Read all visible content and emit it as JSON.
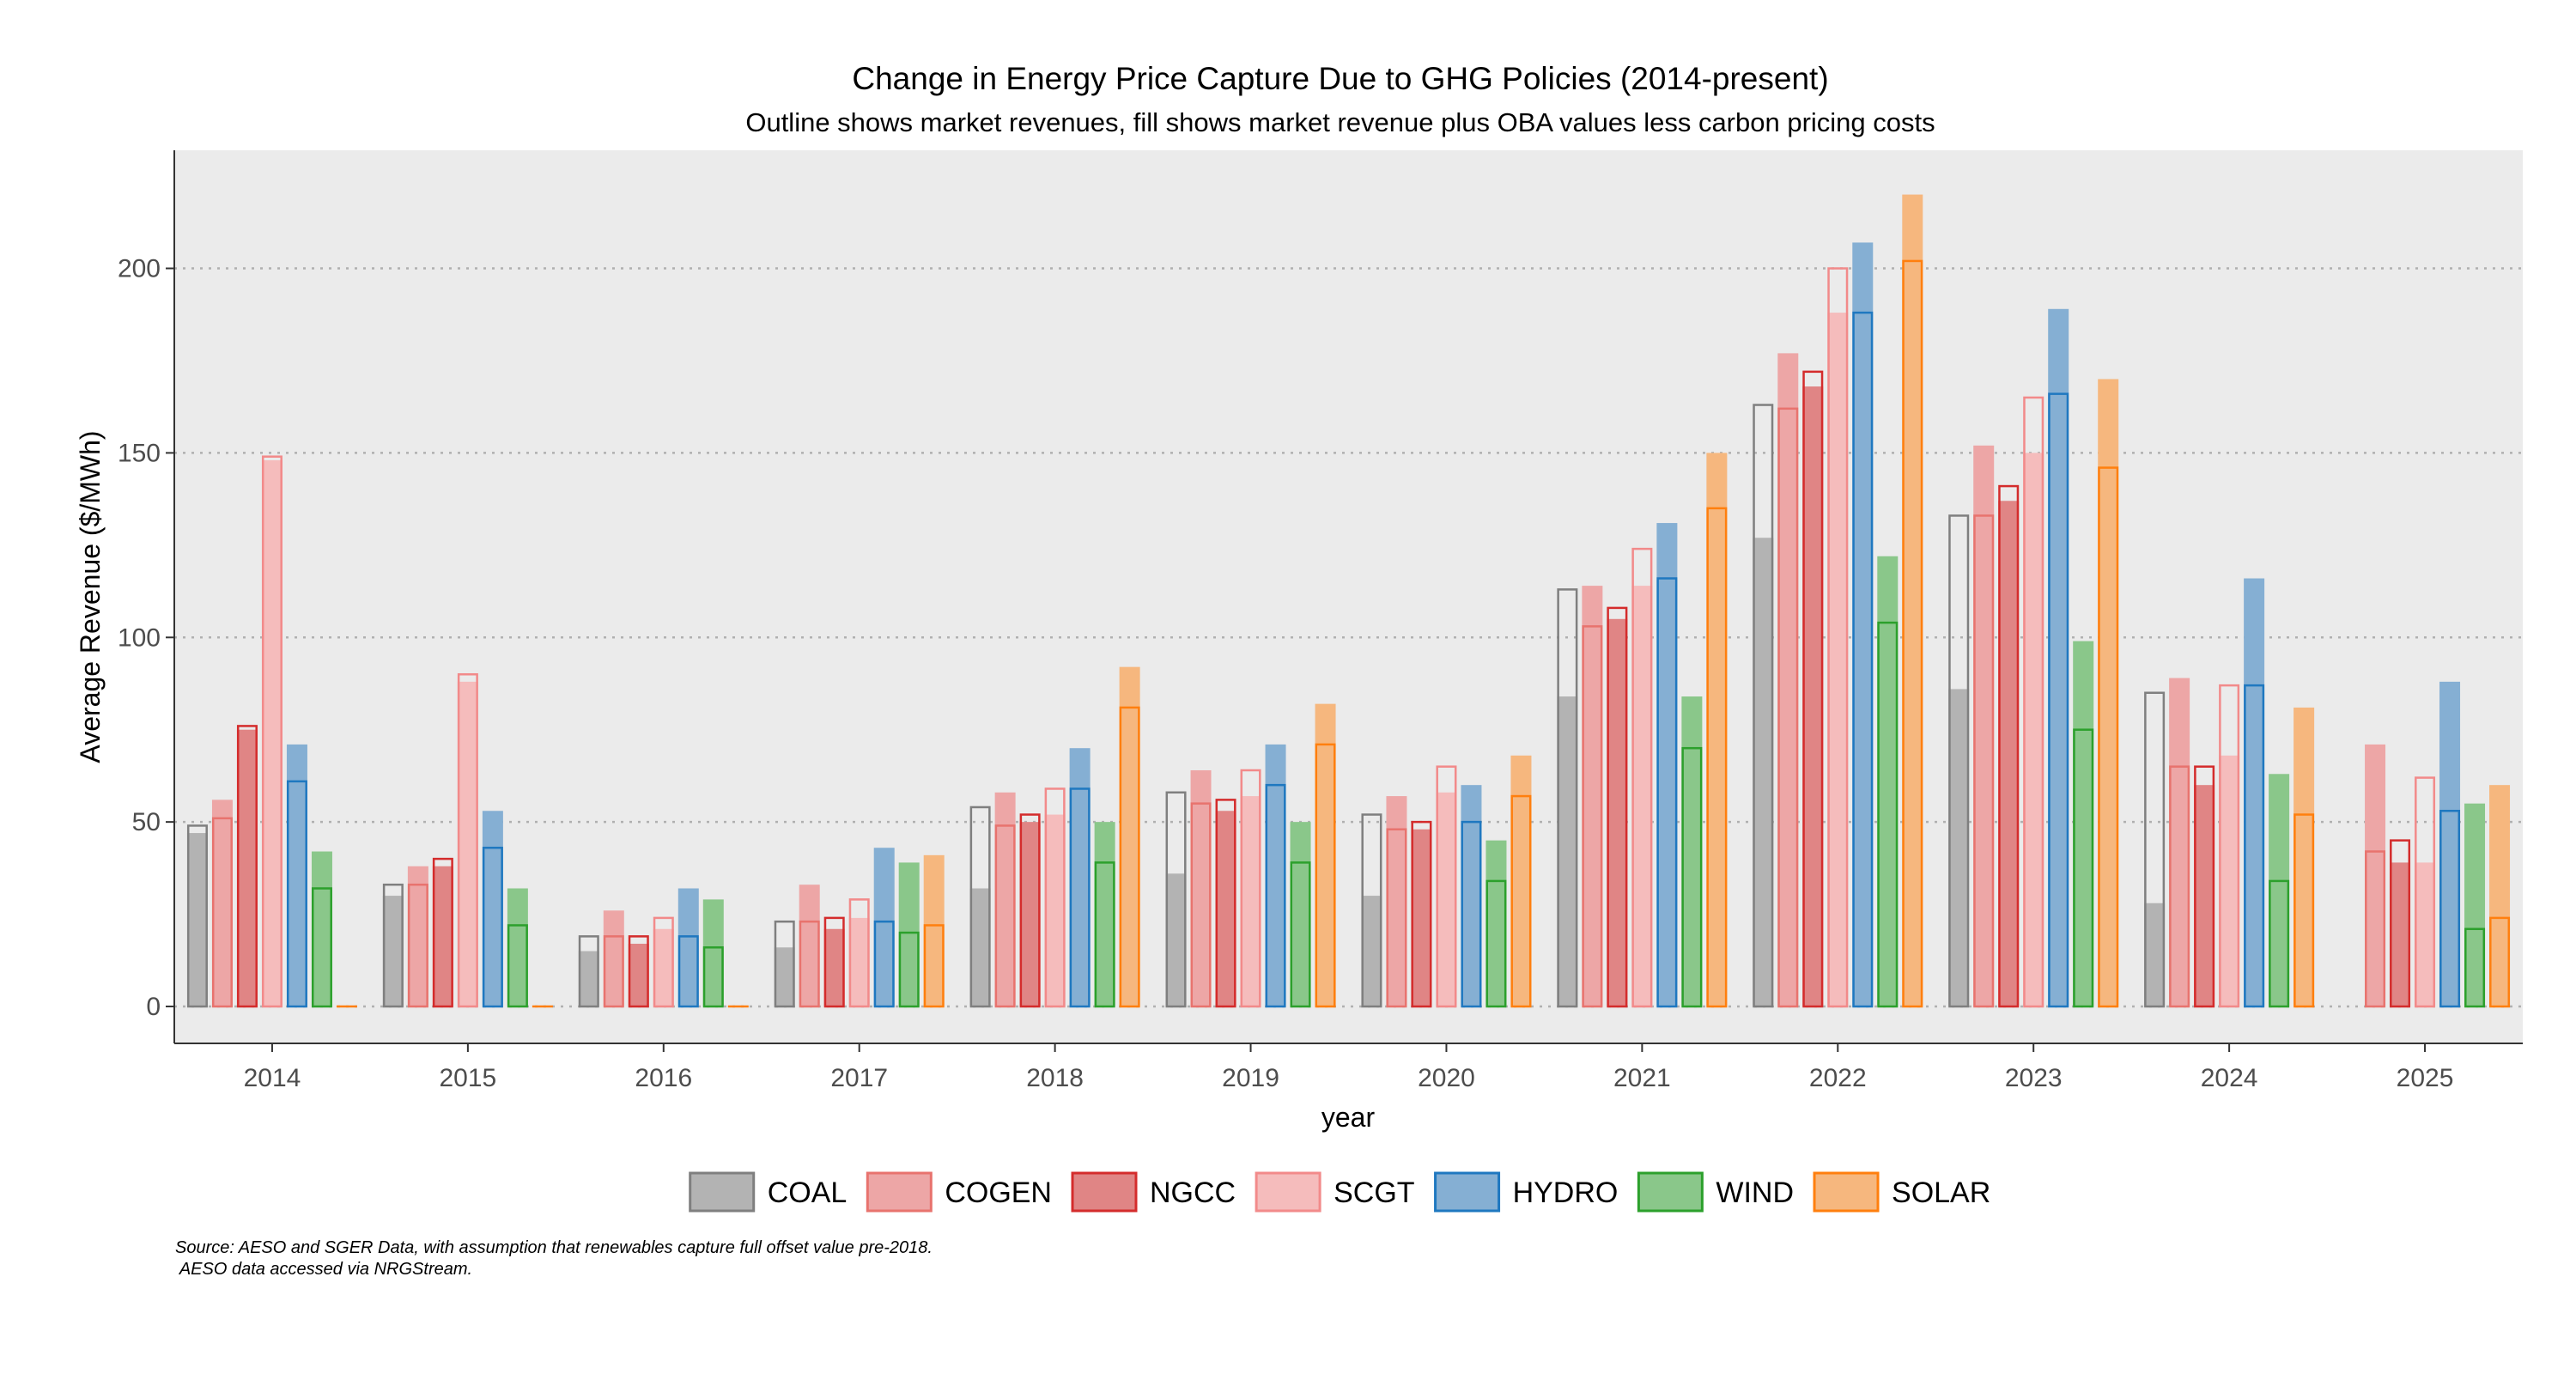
{
  "chart_data": {
    "type": "bar",
    "title": "Change in Energy Price Capture Due to GHG Policies (2014-present)",
    "subtitle": "Outline shows market revenues, fill shows market revenue plus OBA values less carbon pricing costs",
    "xlabel": "year",
    "ylabel": "Average Revenue ($/MWh)",
    "ylim": [
      -10,
      232
    ],
    "yticks": [
      0,
      50,
      100,
      150,
      200
    ],
    "grid": true,
    "legend_position": "bottom",
    "categories": [
      "2014",
      "2015",
      "2016",
      "2017",
      "2018",
      "2019",
      "2020",
      "2021",
      "2022",
      "2023",
      "2024",
      "2025"
    ],
    "series": [
      {
        "name": "COAL",
        "fill_color": "#b3b3b3",
        "outline_color": "#7f7f7f",
        "fill_values": [
          47,
          30,
          15,
          16,
          32,
          36,
          30,
          84,
          127,
          86,
          28,
          null
        ],
        "outline_values": [
          49,
          33,
          19,
          23,
          54,
          58,
          52,
          113,
          163,
          133,
          85,
          null
        ]
      },
      {
        "name": "COGEN",
        "fill_color": "#eda6a6",
        "outline_color": "#e8736e",
        "fill_values": [
          56,
          38,
          26,
          33,
          58,
          64,
          57,
          114,
          177,
          152,
          89,
          71
        ],
        "outline_values": [
          51,
          33,
          19,
          23,
          49,
          55,
          48,
          103,
          162,
          133,
          65,
          42
        ]
      },
      {
        "name": "NGCC",
        "fill_color": "#e08585",
        "outline_color": "#d42c2c",
        "fill_values": [
          75,
          38,
          17,
          21,
          50,
          53,
          48,
          105,
          168,
          137,
          60,
          39
        ],
        "outline_values": [
          76,
          40,
          19,
          24,
          52,
          56,
          50,
          108,
          172,
          141,
          65,
          45
        ]
      },
      {
        "name": "SCGT",
        "fill_color": "#f5bcbc",
        "outline_color": "#f28a8a",
        "fill_values": [
          148,
          88,
          21,
          24,
          52,
          57,
          58,
          114,
          188,
          150,
          68,
          39
        ],
        "outline_values": [
          149,
          90,
          24,
          29,
          59,
          64,
          65,
          124,
          200,
          165,
          87,
          62
        ]
      },
      {
        "name": "HYDRO",
        "fill_color": "#85afd3",
        "outline_color": "#1f78c0",
        "fill_values": [
          71,
          53,
          32,
          43,
          70,
          71,
          60,
          131,
          207,
          189,
          116,
          88
        ],
        "outline_values": [
          61,
          43,
          19,
          23,
          59,
          60,
          50,
          116,
          188,
          166,
          87,
          53
        ]
      },
      {
        "name": "WIND",
        "fill_color": "#8ac78a",
        "outline_color": "#2ca02c",
        "fill_values": [
          42,
          32,
          29,
          39,
          50,
          50,
          45,
          84,
          122,
          99,
          63,
          55
        ],
        "outline_values": [
          32,
          22,
          16,
          20,
          39,
          39,
          34,
          70,
          104,
          75,
          34,
          21
        ]
      },
      {
        "name": "SOLAR",
        "fill_color": "#f6b77e",
        "outline_color": "#ff7f0e",
        "fill_values": [
          0,
          0,
          0,
          41,
          92,
          82,
          68,
          150,
          220,
          170,
          81,
          60
        ],
        "outline_values": [
          0,
          0,
          0,
          22,
          81,
          71,
          57,
          135,
          202,
          146,
          52,
          24
        ]
      }
    ]
  },
  "caption_lines": [
    "Source: AESO and SGER Data, with assumption that renewables capture full offset value pre-2018.",
    " AESO data accessed via NRGStream."
  ]
}
